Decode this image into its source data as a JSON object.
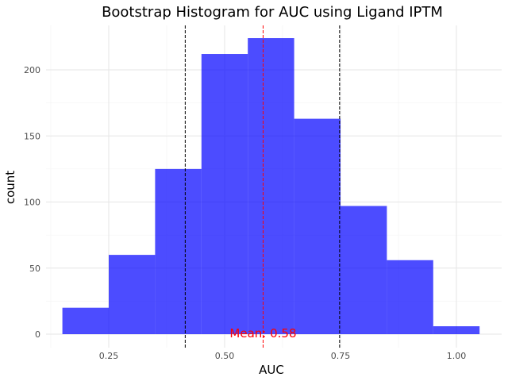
{
  "chart_data": {
    "type": "bar",
    "title": "Bootstrap Histogram for AUC using Ligand IPTM",
    "xlabel": "AUC",
    "ylabel": "count",
    "xlim": [
      0.15,
      1.05
    ],
    "ylim": [
      0,
      225
    ],
    "bins": [
      {
        "start": 0.15,
        "end": 0.25,
        "count": 20
      },
      {
        "start": 0.25,
        "end": 0.35,
        "count": 60
      },
      {
        "start": 0.35,
        "end": 0.45,
        "count": 125
      },
      {
        "start": 0.45,
        "end": 0.55,
        "count": 212
      },
      {
        "start": 0.55,
        "end": 0.65,
        "count": 224
      },
      {
        "start": 0.65,
        "end": 0.75,
        "count": 163
      },
      {
        "start": 0.75,
        "end": 0.85,
        "count": 97
      },
      {
        "start": 0.85,
        "end": 0.95,
        "count": 56
      },
      {
        "start": 0.95,
        "end": 1.05,
        "count": 6
      }
    ],
    "x_ticks": [
      {
        "value": 0.25,
        "label": "0.25"
      },
      {
        "value": 0.5,
        "label": "0.50"
      },
      {
        "value": 0.75,
        "label": "0.75"
      },
      {
        "value": 1.0,
        "label": "1.00"
      }
    ],
    "y_ticks": [
      {
        "value": 0,
        "label": "0"
      },
      {
        "value": 50,
        "label": "50"
      },
      {
        "value": 100,
        "label": "100"
      },
      {
        "value": 150,
        "label": "150"
      },
      {
        "value": 200,
        "label": "200"
      }
    ],
    "reference_lines": [
      {
        "value": 0.415,
        "color": "#000000",
        "style": "dashed"
      },
      {
        "value": 0.583,
        "color": "#ff0000",
        "style": "dashed"
      },
      {
        "value": 0.748,
        "color": "#000000",
        "style": "dashed"
      }
    ],
    "annotation": {
      "text": "Mean: 0.58",
      "x": 0.583,
      "y": 0,
      "color": "#ff0000"
    },
    "bar_color": "#0000ff",
    "bar_opacity": 0.7,
    "grid": true,
    "legend": "none"
  }
}
